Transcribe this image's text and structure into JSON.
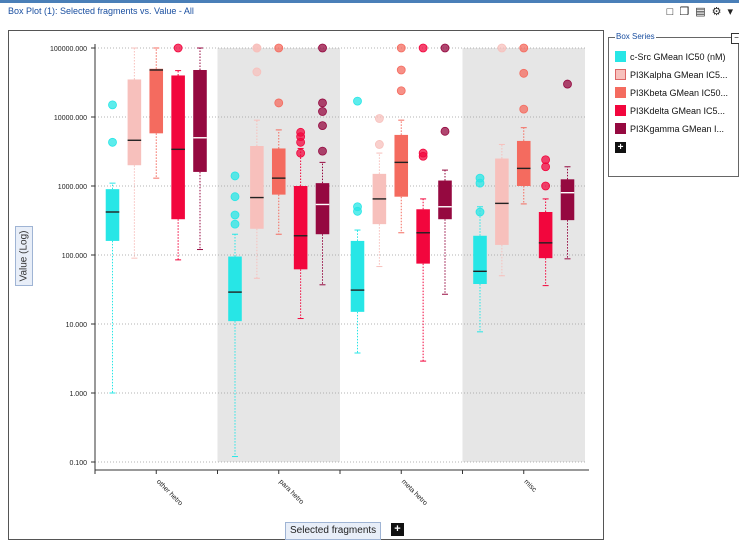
{
  "window": {
    "title": "Box Plot (1): Selected fragments vs. Value - All",
    "toolbar_icons": [
      "bookmark-icon",
      "copy-icon",
      "window-icon",
      "gear-icon",
      "dropdown-icon"
    ]
  },
  "legend": {
    "title": "Box Series",
    "items": [
      {
        "label": "c-Src GMean IC50 (nM)",
        "color": "#27e6e6"
      },
      {
        "label": "PI3Kalpha GMean IC5...",
        "color": "#f7c0bc"
      },
      {
        "label": "PI3Kbeta GMean IC50...",
        "color": "#f46b5f"
      },
      {
        "label": "PI3Kdelta GMean IC5...",
        "color": "#f2063d"
      },
      {
        "label": "PI3Kgamma GMean I...",
        "color": "#950940"
      }
    ]
  },
  "axes": {
    "ylabel": "Value (Log)",
    "xlabel": "Selected fragments"
  },
  "chart_data": {
    "type": "box",
    "title": "Box Plot (1): Selected fragments vs. Value - All",
    "ylabel": "Value (Log)",
    "xlabel": "Selected fragments",
    "yscale": "log",
    "ylim": [
      0.1,
      100000
    ],
    "yticks": [
      "100000.000",
      "10000.000",
      "1000.000",
      "100.000",
      "10.000",
      "1.000",
      "0.100"
    ],
    "categories": [
      "other hetro",
      "para hetro",
      "meta hetro",
      "misc"
    ],
    "series": [
      {
        "name": "c-Src GMean IC50 (nM)",
        "color": "#27e6e6",
        "boxes": [
          {
            "q1": 160,
            "median": 420,
            "q3": 900,
            "whisker_low": 1,
            "whisker_high": 1100,
            "outliers": [
              15000,
              4300
            ]
          },
          {
            "q1": 11,
            "median": 29,
            "q3": 95,
            "whisker_low": 0.12,
            "whisker_high": 200,
            "outliers": [
              1400,
              700,
              380,
              280
            ]
          },
          {
            "q1": 15,
            "median": 31,
            "q3": 160,
            "whisker_low": 3.8,
            "whisker_high": 230,
            "outliers": [
              17000,
              500,
              430
            ]
          },
          {
            "q1": 38,
            "median": 58,
            "q3": 190,
            "whisker_low": 7.7,
            "whisker_high": 500,
            "outliers": [
              1300,
              1100,
              420
            ]
          }
        ]
      },
      {
        "name": "PI3Kalpha GMean IC5...",
        "color": "#f7c0bc",
        "boxes": [
          {
            "q1": 2000,
            "median": 4600,
            "q3": 35000,
            "whisker_low": 90,
            "whisker_high": 100000,
            "outliers": []
          },
          {
            "q1": 240,
            "median": 680,
            "q3": 3800,
            "whisker_low": 46,
            "whisker_high": 9000,
            "outliers": [
              100000,
              100000,
              45000
            ]
          },
          {
            "q1": 280,
            "median": 650,
            "q3": 1500,
            "whisker_low": 68,
            "whisker_high": 3000,
            "outliers": [
              9500,
              4000
            ]
          },
          {
            "q1": 140,
            "median": 560,
            "q3": 2500,
            "whisker_low": 50,
            "whisker_high": 4000,
            "outliers": [
              100000
            ]
          }
        ]
      },
      {
        "name": "PI3Kbeta GMean IC50...",
        "color": "#f46b5f",
        "boxes": [
          {
            "q1": 5800,
            "median": 48000,
            "q3": 50000,
            "whisker_low": 1300,
            "whisker_high": 100000,
            "outliers": []
          },
          {
            "q1": 750,
            "median": 1300,
            "q3": 3500,
            "whisker_low": 200,
            "whisker_high": 6500,
            "outliers": [
              100000,
              16000
            ]
          },
          {
            "q1": 700,
            "median": 2200,
            "q3": 5500,
            "whisker_low": 210,
            "whisker_high": 9000,
            "outliers": [
              100000,
              48000,
              24000
            ]
          },
          {
            "q1": 1000,
            "median": 1800,
            "q3": 4500,
            "whisker_low": 550,
            "whisker_high": 7000,
            "outliers": [
              100000,
              43000,
              13000
            ]
          }
        ]
      },
      {
        "name": "PI3Kdelta GMean IC5...",
        "color": "#f2063d",
        "boxes": [
          {
            "q1": 330,
            "median": 3400,
            "q3": 40000,
            "whisker_low": 85,
            "whisker_high": 47000,
            "outliers": [
              100000
            ]
          },
          {
            "q1": 62,
            "median": 190,
            "q3": 1000,
            "whisker_low": 12,
            "whisker_high": 3500,
            "outliers": [
              6000,
              5200,
              4300,
              3000
            ]
          },
          {
            "q1": 75,
            "median": 210,
            "q3": 460,
            "whisker_low": 2.9,
            "whisker_high": 650,
            "outliers": [
              100000,
              3000,
              2700
            ]
          },
          {
            "q1": 90,
            "median": 150,
            "q3": 420,
            "whisker_low": 36,
            "whisker_high": 650,
            "outliers": [
              2400,
              1900,
              1000
            ]
          }
        ]
      },
      {
        "name": "PI3Kgamma GMean I...",
        "color": "#950940",
        "boxes": [
          {
            "q1": 1600,
            "median": 5000,
            "q3": 48000,
            "whisker_low": 120,
            "whisker_high": 100000,
            "outliers": []
          },
          {
            "q1": 200,
            "median": 540,
            "q3": 1100,
            "whisker_low": 37,
            "whisker_high": 2200,
            "outliers": [
              100000,
              16000,
              12000,
              7500,
              3200
            ]
          },
          {
            "q1": 330,
            "median": 500,
            "q3": 1200,
            "whisker_low": 27,
            "whisker_high": 1700,
            "outliers": [
              100000,
              6200
            ]
          },
          {
            "q1": 320,
            "median": 800,
            "q3": 1250,
            "whisker_low": 88,
            "whisker_high": 1900,
            "outliers": [
              30000
            ]
          }
        ]
      }
    ]
  }
}
